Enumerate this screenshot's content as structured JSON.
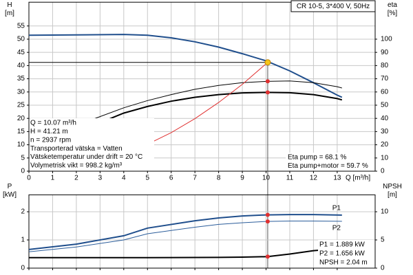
{
  "chart_data": [
    {
      "type": "line",
      "title": "CR 10-5, 3*400 V, 50Hz",
      "y_label": [
        "H",
        "[m]"
      ],
      "y2_label": [
        "eta",
        "[%]"
      ],
      "x_label": "Q [m³/h]",
      "xlim": [
        0,
        14.6
      ],
      "xticks": [
        0,
        1,
        2,
        3,
        4,
        5,
        6,
        7,
        8,
        9,
        10,
        11,
        12,
        13
      ],
      "ylim": [
        0,
        64
      ],
      "yticks": [
        0,
        5,
        10,
        15,
        20,
        25,
        30,
        35,
        40,
        45,
        50,
        55
      ],
      "y2lim": [
        0,
        128
      ],
      "y2ticks": [
        0,
        10,
        20,
        30,
        40,
        50,
        60,
        70,
        80,
        90,
        100
      ],
      "grid": true,
      "series": [
        {
          "color": "#1f4e8c",
          "x": [
            0,
            2,
            4,
            5,
            6,
            7,
            8,
            9,
            10,
            11,
            12,
            13,
            13.2
          ],
          "values": [
            51.5,
            51.6,
            51.8,
            51.5,
            50.5,
            49,
            47,
            44.5,
            41.8,
            38,
            33.5,
            28.8,
            28
          ]
        },
        {
          "color": "#000000",
          "axis": "y2",
          "x": [
            2.5,
            4,
            5,
            6,
            7,
            8,
            9,
            10,
            11,
            12,
            13,
            13.2
          ],
          "values": [
            38,
            48,
            53.5,
            58,
            62,
            65,
            67,
            68,
            68.3,
            67,
            64,
            63
          ]
        },
        {
          "color": "#000000",
          "axis": "y2",
          "x": [
            2.5,
            4,
            5,
            6,
            7,
            8,
            9,
            10,
            11,
            12,
            13,
            13.2
          ],
          "values": [
            33,
            44,
            49,
            53,
            56,
            58,
            59.3,
            59.7,
            59.4,
            58,
            55,
            54
          ]
        },
        {
          "color": "#e03030",
          "x": [
            5,
            6,
            7,
            8,
            9,
            10.07
          ],
          "values": [
            10.2,
            14.6,
            19.9,
            26,
            32.9,
            41.21
          ]
        }
      ],
      "duty_point": {
        "x": 10.07,
        "y": 41.21,
        "color": "#f5c518"
      },
      "markers": [
        {
          "x": 10.07,
          "y": 68.1,
          "axis": "y2",
          "color": "#e03030"
        },
        {
          "x": 10.07,
          "y": 59.7,
          "axis": "y2",
          "color": "#e03030"
        }
      ],
      "annotations": [
        "Q = 10.07 m³/h",
        "H = 41.21 m",
        "n = 2937 rpm",
        "Transporterad vätska = Vatten",
        "Vätsketemperatur under drift = 20 °C",
        "Volymetrisk vikt = 998.2 kg/m³"
      ],
      "annotations_right": [
        "Eta pump = 68.1 %",
        "Eta pump+motor = 59.7 %"
      ]
    },
    {
      "type": "line",
      "y_label": [
        "P",
        "[kW]"
      ],
      "y2_label": [
        "NPSH",
        "[m]"
      ],
      "xlim": [
        0,
        14.6
      ],
      "xticks": [
        0,
        1,
        2,
        3,
        4,
        5,
        6,
        7,
        8,
        9,
        10,
        11,
        12,
        13
      ],
      "ylim": [
        0,
        2.6
      ],
      "yticks": [
        0,
        1,
        2
      ],
      "y2lim": [
        0,
        13
      ],
      "y2ticks": [
        0,
        5,
        10
      ],
      "grid": true,
      "series": [
        {
          "name": "P1",
          "color": "#1f4e8c",
          "x": [
            0,
            2,
            4,
            5,
            7,
            8,
            9,
            10,
            11,
            12,
            13.2
          ],
          "values": [
            0.66,
            0.85,
            1.15,
            1.42,
            1.68,
            1.78,
            1.85,
            1.889,
            1.9,
            1.9,
            1.88
          ]
        },
        {
          "name": "P2",
          "color": "#2a5c9a",
          "x": [
            0,
            2,
            4,
            5,
            7,
            8,
            9,
            10,
            11,
            12,
            13.2
          ],
          "values": [
            0.58,
            0.75,
            1.0,
            1.22,
            1.45,
            1.55,
            1.61,
            1.656,
            1.67,
            1.67,
            1.66
          ]
        },
        {
          "color": "#000000",
          "axis": "y2",
          "x": [
            0,
            5,
            8,
            9,
            10.07,
            11,
            12,
            13.2
          ],
          "values": [
            1.85,
            1.85,
            1.9,
            1.95,
            2.04,
            2.5,
            3.1,
            3.5
          ]
        }
      ],
      "markers": [
        {
          "x": 10.07,
          "y": 1.889,
          "color": "#e03030"
        },
        {
          "x": 10.07,
          "y": 1.656,
          "color": "#e03030"
        },
        {
          "x": 10.07,
          "y": 2.04,
          "axis": "y2",
          "color": "#e03030"
        }
      ],
      "annotations": [
        "P1 = 1.889 kW",
        "P2 = 1.656 kW",
        "NPSH = 2.04 m"
      ]
    }
  ]
}
